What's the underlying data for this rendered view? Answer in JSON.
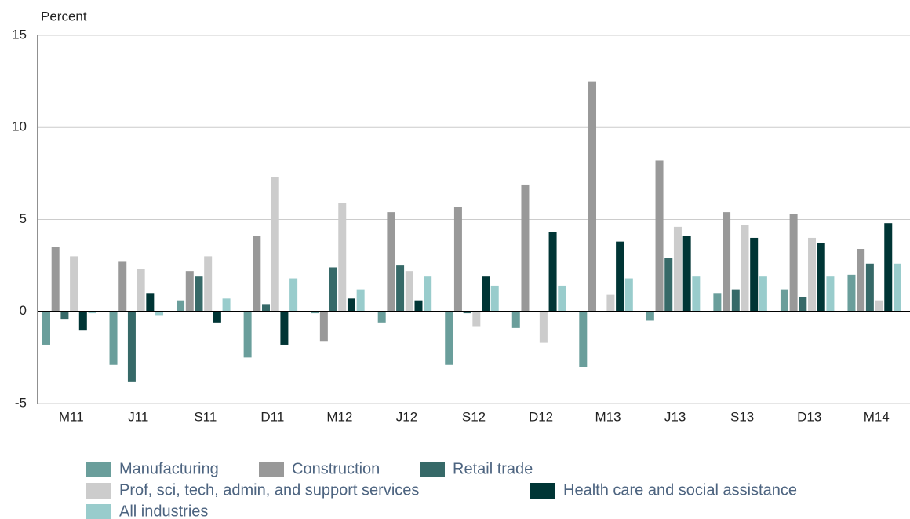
{
  "chart_data": {
    "type": "bar",
    "y_label": "Percent",
    "categories": [
      "M11",
      "J11",
      "S11",
      "D11",
      "M12",
      "J12",
      "S12",
      "D12",
      "M13",
      "J13",
      "S13",
      "D13",
      "M14"
    ],
    "series": [
      {
        "name": "Manufacturing",
        "color": "#6a9e9b",
        "values": [
          -1.8,
          -2.9,
          0.6,
          -2.5,
          -0.1,
          -0.6,
          -2.9,
          -0.9,
          -3.0,
          -0.5,
          1.0,
          1.2,
          2.0
        ]
      },
      {
        "name": "Construction",
        "color": "#999999",
        "values": [
          3.5,
          2.7,
          2.2,
          4.1,
          -1.6,
          5.4,
          5.7,
          6.9,
          12.5,
          8.2,
          5.4,
          5.3,
          3.4
        ]
      },
      {
        "name": "Retail trade",
        "color": "#366968",
        "values": [
          -0.4,
          -3.8,
          1.9,
          0.4,
          2.4,
          2.5,
          -0.1,
          0,
          null,
          2.9,
          1.2,
          0.8,
          2.6
        ]
      },
      {
        "name": "Prof, sci, tech, admin, and support services",
        "color": "#cccccc",
        "values": [
          3.0,
          2.3,
          3.0,
          7.3,
          5.9,
          2.2,
          -0.8,
          -1.7,
          0.9,
          4.6,
          4.7,
          4.0,
          0.6
        ]
      },
      {
        "name": "Health care and social assistance",
        "color": "#003535",
        "values": [
          -1.0,
          1.0,
          -0.6,
          -1.8,
          0.7,
          0.6,
          1.9,
          4.3,
          3.8,
          4.1,
          4.0,
          3.7,
          4.8
        ]
      },
      {
        "name": "All industries",
        "color": "#99cccc",
        "values": [
          -0.1,
          -0.2,
          0.7,
          1.8,
          1.2,
          1.9,
          1.4,
          1.4,
          1.8,
          1.9,
          1.9,
          1.9,
          2.6
        ]
      }
    ],
    "ylim": [
      -5,
      15
    ],
    "yticks": [
      -5,
      0,
      5,
      10,
      15
    ],
    "grid": true
  }
}
